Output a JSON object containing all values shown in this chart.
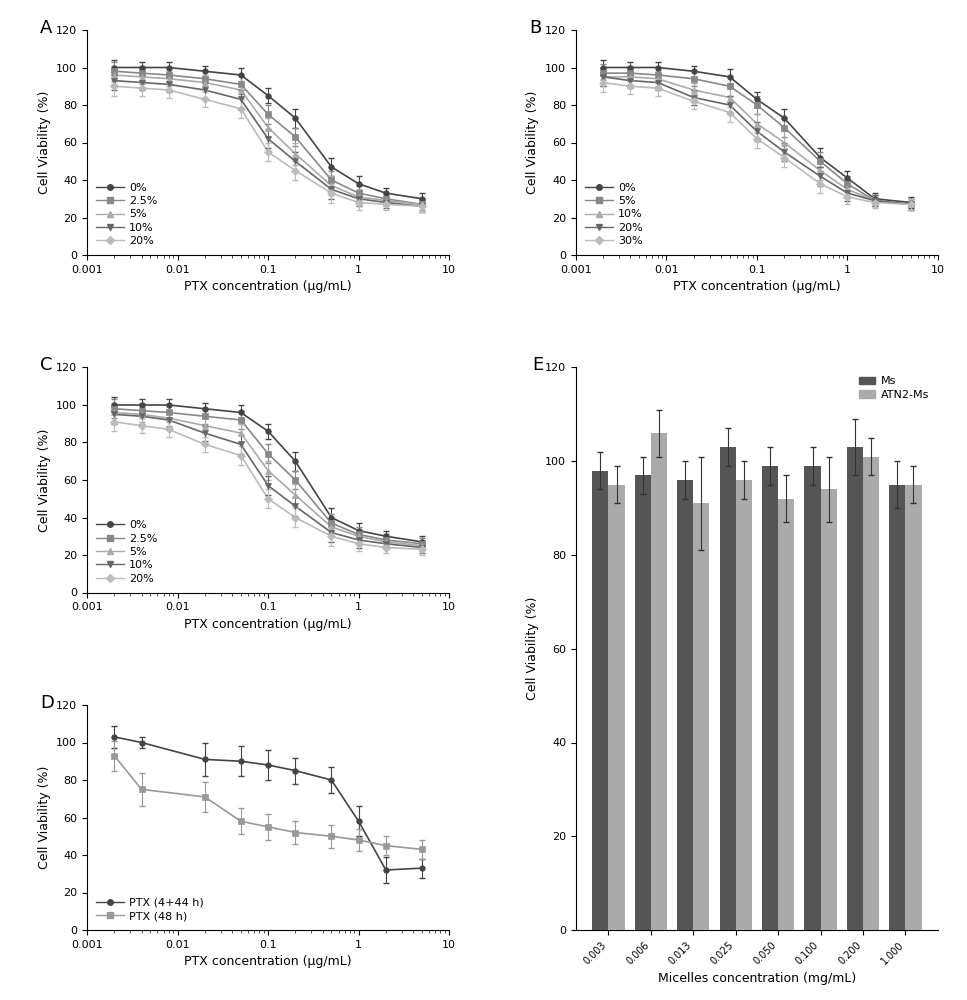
{
  "panel_A": {
    "title": "A",
    "xlabel": "PTX concentration (μg/mL)",
    "ylabel": "Cell Viability (%)",
    "xlim": [
      0.001,
      10
    ],
    "ylim": [
      0,
      120
    ],
    "yticks": [
      0,
      20,
      40,
      60,
      80,
      100,
      120
    ],
    "legend_loc": "lower left",
    "series": [
      {
        "label": "0%",
        "color": "#444444",
        "marker": "o",
        "x": [
          0.002,
          0.004,
          0.008,
          0.02,
          0.05,
          0.1,
          0.2,
          0.5,
          1.0,
          2.0,
          5.0
        ],
        "y": [
          100,
          100,
          100,
          98,
          96,
          85,
          73,
          47,
          38,
          33,
          30
        ],
        "yerr": [
          4,
          3,
          3,
          3,
          4,
          4,
          5,
          5,
          4,
          3,
          3
        ]
      },
      {
        "label": "2.5%",
        "color": "#888888",
        "marker": "s",
        "x": [
          0.002,
          0.004,
          0.008,
          0.02,
          0.05,
          0.1,
          0.2,
          0.5,
          1.0,
          2.0,
          5.0
        ],
        "y": [
          98,
          97,
          96,
          94,
          91,
          75,
          63,
          40,
          33,
          30,
          27
        ],
        "yerr": [
          5,
          4,
          4,
          4,
          5,
          5,
          5,
          5,
          4,
          3,
          3
        ]
      },
      {
        "label": "5%",
        "color": "#aaaaaa",
        "marker": "^",
        "x": [
          0.002,
          0.004,
          0.008,
          0.02,
          0.05,
          0.1,
          0.2,
          0.5,
          1.0,
          2.0,
          5.0
        ],
        "y": [
          96,
          95,
          94,
          92,
          88,
          68,
          54,
          37,
          31,
          29,
          27
        ],
        "yerr": [
          5,
          4,
          4,
          4,
          5,
          5,
          6,
          5,
          4,
          3,
          3
        ]
      },
      {
        "label": "10%",
        "color": "#666666",
        "marker": "v",
        "x": [
          0.002,
          0.004,
          0.008,
          0.02,
          0.05,
          0.1,
          0.2,
          0.5,
          1.0,
          2.0,
          5.0
        ],
        "y": [
          93,
          92,
          91,
          88,
          83,
          62,
          50,
          35,
          30,
          28,
          26
        ],
        "yerr": [
          5,
          4,
          4,
          4,
          5,
          5,
          5,
          5,
          4,
          3,
          3
        ]
      },
      {
        "label": "20%",
        "color": "#bbbbbb",
        "marker": "D",
        "x": [
          0.002,
          0.004,
          0.008,
          0.02,
          0.05,
          0.1,
          0.2,
          0.5,
          1.0,
          2.0,
          5.0
        ],
        "y": [
          90,
          89,
          88,
          83,
          78,
          55,
          45,
          33,
          28,
          27,
          26
        ],
        "yerr": [
          5,
          4,
          4,
          4,
          5,
          5,
          5,
          5,
          4,
          3,
          3
        ]
      }
    ]
  },
  "panel_B": {
    "title": "B",
    "xlabel": "PTX concentration (μg/mL)",
    "ylabel": "Cell Viability (%)",
    "xlim": [
      0.001,
      10
    ],
    "ylim": [
      0,
      120
    ],
    "yticks": [
      0,
      20,
      40,
      60,
      80,
      100,
      120
    ],
    "legend_loc": "lower left",
    "series": [
      {
        "label": "0%",
        "color": "#444444",
        "marker": "o",
        "x": [
          0.002,
          0.004,
          0.008,
          0.02,
          0.05,
          0.1,
          0.2,
          0.5,
          1.0,
          2.0,
          5.0
        ],
        "y": [
          100,
          100,
          100,
          98,
          95,
          83,
          73,
          52,
          41,
          30,
          28
        ],
        "yerr": [
          4,
          3,
          3,
          3,
          4,
          4,
          5,
          5,
          4,
          3,
          3
        ]
      },
      {
        "label": "5%",
        "color": "#888888",
        "marker": "s",
        "x": [
          0.002,
          0.004,
          0.008,
          0.02,
          0.05,
          0.1,
          0.2,
          0.5,
          1.0,
          2.0,
          5.0
        ],
        "y": [
          97,
          97,
          96,
          94,
          90,
          80,
          68,
          50,
          38,
          29,
          27
        ],
        "yerr": [
          5,
          4,
          4,
          4,
          5,
          5,
          5,
          5,
          4,
          3,
          3
        ]
      },
      {
        "label": "10%",
        "color": "#aaaaaa",
        "marker": "^",
        "x": [
          0.002,
          0.004,
          0.008,
          0.02,
          0.05,
          0.1,
          0.2,
          0.5,
          1.0,
          2.0,
          5.0
        ],
        "y": [
          95,
          95,
          94,
          88,
          84,
          70,
          60,
          45,
          35,
          29,
          27
        ],
        "yerr": [
          5,
          4,
          4,
          4,
          5,
          5,
          6,
          5,
          4,
          3,
          3
        ]
      },
      {
        "label": "20%",
        "color": "#666666",
        "marker": "v",
        "x": [
          0.002,
          0.004,
          0.008,
          0.02,
          0.05,
          0.1,
          0.2,
          0.5,
          1.0,
          2.0,
          5.0
        ],
        "y": [
          95,
          93,
          92,
          84,
          80,
          66,
          55,
          42,
          33,
          29,
          27
        ],
        "yerr": [
          5,
          4,
          4,
          4,
          5,
          5,
          5,
          5,
          4,
          3,
          3
        ]
      },
      {
        "label": "30%",
        "color": "#bbbbbb",
        "marker": "D",
        "x": [
          0.002,
          0.004,
          0.008,
          0.02,
          0.05,
          0.1,
          0.2,
          0.5,
          1.0,
          2.0,
          5.0
        ],
        "y": [
          92,
          90,
          89,
          82,
          76,
          62,
          52,
          38,
          31,
          28,
          27
        ],
        "yerr": [
          5,
          4,
          4,
          4,
          5,
          5,
          5,
          5,
          4,
          3,
          3
        ]
      }
    ]
  },
  "panel_C": {
    "title": "C",
    "xlabel": "PTX concentration (μg/mL)",
    "ylabel": "Cell Viability (%)",
    "xlim": [
      0.001,
      10
    ],
    "ylim": [
      0,
      120
    ],
    "yticks": [
      0,
      20,
      40,
      60,
      80,
      100,
      120
    ],
    "legend_loc": "lower left",
    "series": [
      {
        "label": "0%",
        "color": "#444444",
        "marker": "o",
        "x": [
          0.002,
          0.004,
          0.008,
          0.02,
          0.05,
          0.1,
          0.2,
          0.5,
          1.0,
          2.0,
          5.0
        ],
        "y": [
          100,
          100,
          100,
          98,
          96,
          86,
          70,
          40,
          33,
          30,
          27
        ],
        "yerr": [
          4,
          3,
          3,
          3,
          4,
          4,
          5,
          5,
          4,
          3,
          3
        ]
      },
      {
        "label": "2.5%",
        "color": "#888888",
        "marker": "s",
        "x": [
          0.002,
          0.004,
          0.008,
          0.02,
          0.05,
          0.1,
          0.2,
          0.5,
          1.0,
          2.0,
          5.0
        ],
        "y": [
          98,
          97,
          96,
          94,
          92,
          74,
          60,
          37,
          31,
          28,
          26
        ],
        "yerr": [
          5,
          4,
          4,
          4,
          5,
          5,
          5,
          5,
          4,
          3,
          3
        ]
      },
      {
        "label": "5%",
        "color": "#aaaaaa",
        "marker": "^",
        "x": [
          0.002,
          0.004,
          0.008,
          0.02,
          0.05,
          0.1,
          0.2,
          0.5,
          1.0,
          2.0,
          5.0
        ],
        "y": [
          96,
          95,
          93,
          89,
          85,
          65,
          52,
          35,
          30,
          27,
          25
        ],
        "yerr": [
          5,
          4,
          4,
          4,
          5,
          5,
          6,
          5,
          4,
          3,
          3
        ]
      },
      {
        "label": "10%",
        "color": "#666666",
        "marker": "v",
        "x": [
          0.002,
          0.004,
          0.008,
          0.02,
          0.05,
          0.1,
          0.2,
          0.5,
          1.0,
          2.0,
          5.0
        ],
        "y": [
          95,
          94,
          92,
          85,
          79,
          57,
          46,
          32,
          28,
          26,
          24
        ],
        "yerr": [
          5,
          4,
          4,
          4,
          5,
          5,
          5,
          5,
          4,
          3,
          3
        ]
      },
      {
        "label": "20%",
        "color": "#bbbbbb",
        "marker": "D",
        "x": [
          0.002,
          0.004,
          0.008,
          0.02,
          0.05,
          0.1,
          0.2,
          0.5,
          1.0,
          2.0,
          5.0
        ],
        "y": [
          91,
          89,
          87,
          79,
          73,
          50,
          40,
          30,
          26,
          24,
          23
        ],
        "yerr": [
          5,
          4,
          4,
          4,
          5,
          5,
          5,
          5,
          4,
          3,
          3
        ]
      }
    ]
  },
  "panel_D": {
    "title": "D",
    "xlabel": "PTX concentration (μg/mL)",
    "ylabel": "Cell Viability (%)",
    "xlim": [
      0.001,
      10
    ],
    "ylim": [
      0,
      120
    ],
    "yticks": [
      0,
      20,
      40,
      60,
      80,
      100,
      120
    ],
    "legend_loc": "lower left",
    "series": [
      {
        "label": "PTX (4+44 h)",
        "color": "#444444",
        "marker": "o",
        "x": [
          0.002,
          0.004,
          0.02,
          0.05,
          0.1,
          0.2,
          0.5,
          1.0,
          2.0,
          5.0
        ],
        "y": [
          103,
          100,
          91,
          90,
          88,
          85,
          80,
          58,
          32,
          33
        ],
        "yerr": [
          6,
          3,
          9,
          8,
          8,
          7,
          7,
          8,
          7,
          5
        ]
      },
      {
        "label": "PTX (48 h)",
        "color": "#999999",
        "marker": "s",
        "x": [
          0.002,
          0.004,
          0.02,
          0.05,
          0.1,
          0.2,
          0.5,
          1.0,
          2.0,
          5.0
        ],
        "y": [
          93,
          75,
          71,
          58,
          55,
          52,
          50,
          48,
          45,
          43
        ],
        "yerr": [
          8,
          9,
          8,
          7,
          7,
          6,
          6,
          6,
          5,
          5
        ]
      }
    ]
  },
  "panel_E": {
    "title": "E",
    "xlabel": "Micelles concentration (mg/mL)",
    "ylabel": "Cell Viability (%)",
    "ylim": [
      0,
      120
    ],
    "yticks": [
      0,
      20,
      40,
      60,
      80,
      100,
      120
    ],
    "categories": [
      "0.003",
      "0.006",
      "0.013",
      "0.025",
      "0.050",
      "0.100",
      "0.200",
      "1.000"
    ],
    "series": [
      {
        "label": "Ms",
        "color": "#555555",
        "values": [
          98,
          97,
          96,
          103,
          99,
          99,
          103,
          95
        ],
        "yerr": [
          4,
          4,
          4,
          4,
          4,
          4,
          6,
          5
        ]
      },
      {
        "label": "ATN2-Ms",
        "color": "#aaaaaa",
        "values": [
          95,
          106,
          91,
          96,
          92,
          94,
          101,
          95
        ],
        "yerr": [
          4,
          5,
          10,
          4,
          5,
          7,
          4,
          4
        ]
      }
    ]
  },
  "background_color": "#ffffff",
  "font_size": 9,
  "tick_font_size": 8
}
